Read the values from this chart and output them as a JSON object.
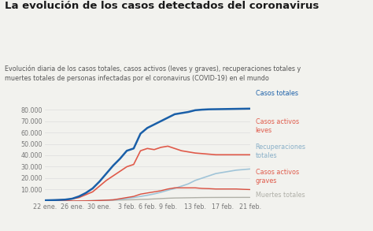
{
  "title": "La evolución de los casos detectados del coronavirus",
  "subtitle": "Evolución diaria de los casos totales, casos activos (leves y graves), recuperaciones totales y\nmuertes totales de personas infectadas por el coronavirus (COVID-19) en el mundo",
  "background_color": "#f2f2ee",
  "title_color": "#1a1a1a",
  "subtitle_color": "#555555",
  "x_labels": [
    "22 ene.",
    "26 ene.",
    "30 ene.",
    "3 feb.",
    "6 feb.",
    "9 feb.",
    "13 feb.",
    "17 feb.",
    "21 feb."
  ],
  "ylim": [
    0,
    85000
  ],
  "yticks": [
    0,
    10000,
    20000,
    30000,
    40000,
    50000,
    60000,
    70000,
    80000
  ],
  "ytick_labels": [
    "",
    "10.000",
    "20.000",
    "30.000",
    "40.000",
    "50.000",
    "60.000",
    "70.000",
    "80.000"
  ],
  "series": {
    "casos_totales": {
      "color": "#1a5fa8",
      "label": "Casos totales",
      "values": [
        548,
        700,
        900,
        1200,
        2000,
        4000,
        7000,
        11000,
        17000,
        24000,
        31000,
        37000,
        44000,
        46000,
        59000,
        64000,
        67000,
        70000,
        73000,
        76000,
        77000,
        78000,
        79500,
        80000,
        80300,
        80400,
        80500,
        80600,
        80700,
        80800,
        80900
      ]
    },
    "casos_activos_leves": {
      "color": "#e05a4a",
      "label": "Casos activos\nleves",
      "values": [
        500,
        650,
        850,
        1100,
        1800,
        3000,
        5500,
        8000,
        13000,
        18000,
        22000,
        26000,
        30000,
        32000,
        44000,
        46000,
        45000,
        47000,
        48000,
        46000,
        44000,
        43000,
        42000,
        41500,
        41000,
        40500,
        40500,
        40500,
        40500,
        40500,
        40500
      ]
    },
    "recuperaciones_totales": {
      "color": "#a0c4d8",
      "label": "Recuperaciones\ntotales",
      "values": [
        30,
        30,
        30,
        30,
        50,
        70,
        100,
        300,
        500,
        700,
        1000,
        1500,
        2300,
        3000,
        4000,
        5000,
        6200,
        7700,
        9400,
        11000,
        13000,
        15000,
        18000,
        20000,
        22000,
        24000,
        25000,
        26000,
        27000,
        27500,
        28000
      ]
    },
    "casos_activos_graves": {
      "color": "#d94f3f",
      "label": "Casos activos\ngraves",
      "values": [
        10,
        10,
        10,
        10,
        20,
        30,
        100,
        200,
        400,
        700,
        1000,
        2000,
        3000,
        4000,
        6000,
        7000,
        8000,
        9000,
        10500,
        11500,
        11500,
        11500,
        11500,
        11000,
        10800,
        10500,
        10500,
        10500,
        10500,
        10200,
        10000
      ]
    },
    "muertes_totales": {
      "color": "#b0b0a8",
      "label": "Muertes totales",
      "values": [
        17,
        18,
        20,
        30,
        60,
        100,
        170,
        260,
        360,
        490,
        640,
        810,
        1000,
        1100,
        1400,
        1500,
        1800,
        2100,
        2400,
        2600,
        2700,
        2800,
        2900,
        3000,
        3050,
        3080,
        3100,
        3110,
        3120,
        3130,
        3140
      ]
    }
  },
  "annotation_label_color_casos_totales": "#1a5fa8",
  "annotation_label_color_activos_leves": "#e05a4a",
  "annotation_label_color_recuperaciones": "#8ab0c8",
  "annotation_label_color_activos_graves": "#e05a4a",
  "annotation_label_color_muertes": "#b0b0a8"
}
